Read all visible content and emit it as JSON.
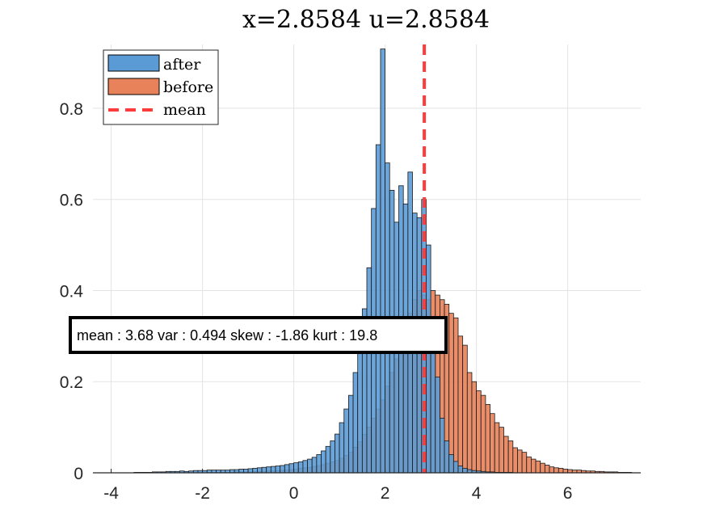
{
  "chart_data": {
    "type": "bar",
    "title": "x=2.8584 u=2.8584",
    "xlim": [
      -4.4,
      7.6
    ],
    "ylim": [
      0,
      0.94
    ],
    "xticks": [
      -4,
      -2,
      0,
      2,
      4,
      6
    ],
    "xtick_labels": [
      "-4",
      "-2",
      "0",
      "2",
      "4",
      "6"
    ],
    "yticks": [
      0,
      0.2,
      0.4,
      0.6,
      0.8
    ],
    "ytick_labels": [
      "0",
      "0.2",
      "0.4",
      "0.6",
      "0.8"
    ],
    "grid": true,
    "legend_position": "top-left",
    "bin_width": 0.1,
    "series": [
      {
        "name": "after",
        "color": "#5b9bd5",
        "bin_centers": [
          -3.45,
          -3.35,
          -3.25,
          -3.15,
          -3.05,
          -2.95,
          -2.85,
          -2.75,
          -2.65,
          -2.55,
          -2.45,
          -2.35,
          -2.25,
          -2.15,
          -2.05,
          -1.95,
          -1.85,
          -1.75,
          -1.65,
          -1.55,
          -1.45,
          -1.35,
          -1.25,
          -1.15,
          -1.05,
          -0.95,
          -0.85,
          -0.75,
          -0.65,
          -0.55,
          -0.45,
          -0.35,
          -0.25,
          -0.15,
          -0.05,
          0.05,
          0.15,
          0.25,
          0.35,
          0.45,
          0.55,
          0.65,
          0.75,
          0.85,
          0.95,
          1.05,
          1.15,
          1.25,
          1.35,
          1.45,
          1.55,
          1.65,
          1.75,
          1.85,
          1.95,
          2.05,
          2.15,
          2.25,
          2.35,
          2.45,
          2.55,
          2.65,
          2.75,
          2.85,
          2.95,
          3.05,
          3.15,
          3.25,
          3.35,
          3.45,
          3.55,
          3.65,
          3.75,
          3.85,
          3.95,
          4.05,
          4.15,
          4.25,
          4.35,
          4.45,
          4.55,
          4.65,
          4.75,
          4.85,
          4.95
        ],
        "values": [
          0.001,
          0.001,
          0.001,
          0.001,
          0.002,
          0.002,
          0.002,
          0.003,
          0.003,
          0.003,
          0.004,
          0.003,
          0.004,
          0.005,
          0.005,
          0.005,
          0.006,
          0.006,
          0.006,
          0.006,
          0.006,
          0.007,
          0.007,
          0.008,
          0.008,
          0.009,
          0.01,
          0.011,
          0.012,
          0.013,
          0.014,
          0.015,
          0.016,
          0.018,
          0.02,
          0.022,
          0.024,
          0.027,
          0.03,
          0.034,
          0.04,
          0.048,
          0.058,
          0.07,
          0.085,
          0.11,
          0.14,
          0.17,
          0.22,
          0.28,
          0.36,
          0.45,
          0.58,
          0.72,
          0.93,
          0.68,
          0.62,
          0.55,
          0.63,
          0.59,
          0.66,
          0.57,
          0.56,
          0.6,
          0.5,
          0.32,
          0.21,
          0.12,
          0.07,
          0.04,
          0.025,
          0.015,
          0.01,
          0.007,
          0.005,
          0.004,
          0.003,
          0.002,
          0.002,
          0.001,
          0.001,
          0.001,
          0.001,
          0.0,
          0.0
        ]
      },
      {
        "name": "before",
        "color": "#e8825a",
        "bin_centers": [
          -2.05,
          -1.95,
          -1.85,
          -1.75,
          -1.65,
          -1.55,
          -1.45,
          -1.35,
          -1.25,
          -1.15,
          -1.05,
          -0.95,
          -0.85,
          -0.75,
          -0.65,
          -0.55,
          -0.45,
          -0.35,
          -0.25,
          -0.15,
          -0.05,
          0.05,
          0.15,
          0.25,
          0.35,
          0.45,
          0.55,
          0.65,
          0.75,
          0.85,
          0.95,
          1.05,
          1.15,
          1.25,
          1.35,
          1.45,
          1.55,
          1.65,
          1.75,
          1.85,
          1.95,
          2.05,
          2.15,
          2.25,
          2.35,
          2.45,
          2.55,
          2.65,
          2.75,
          2.85,
          2.95,
          3.05,
          3.15,
          3.25,
          3.35,
          3.45,
          3.55,
          3.65,
          3.75,
          3.85,
          3.95,
          4.05,
          4.15,
          4.25,
          4.35,
          4.45,
          4.55,
          4.65,
          4.75,
          4.85,
          4.95,
          5.05,
          5.15,
          5.25,
          5.35,
          5.45,
          5.55,
          5.65,
          5.75,
          5.85,
          5.95,
          6.05,
          6.15,
          6.25,
          6.35,
          6.45,
          6.55,
          6.65,
          6.75,
          6.85,
          6.95,
          7.05,
          7.15,
          7.25,
          7.35
        ],
        "values": [
          0.0,
          0.0,
          0.001,
          0.001,
          0.001,
          0.001,
          0.001,
          0.001,
          0.002,
          0.002,
          0.002,
          0.002,
          0.003,
          0.003,
          0.003,
          0.004,
          0.004,
          0.005,
          0.005,
          0.006,
          0.007,
          0.008,
          0.01,
          0.011,
          0.012,
          0.014,
          0.016,
          0.018,
          0.021,
          0.024,
          0.027,
          0.032,
          0.038,
          0.045,
          0.056,
          0.068,
          0.084,
          0.1,
          0.12,
          0.14,
          0.16,
          0.19,
          0.22,
          0.25,
          0.28,
          0.31,
          0.35,
          0.38,
          0.4,
          0.39,
          0.38,
          0.4,
          0.39,
          0.38,
          0.37,
          0.35,
          0.34,
          0.3,
          0.28,
          0.22,
          0.2,
          0.18,
          0.17,
          0.15,
          0.13,
          0.11,
          0.1,
          0.08,
          0.07,
          0.055,
          0.05,
          0.045,
          0.035,
          0.03,
          0.026,
          0.021,
          0.017,
          0.013,
          0.011,
          0.01,
          0.008,
          0.007,
          0.006,
          0.006,
          0.005,
          0.004,
          0.004,
          0.003,
          0.003,
          0.002,
          0.002,
          0.002,
          0.001,
          0.001,
          0.001,
          0.001
        ]
      }
    ],
    "vline": {
      "name": "mean",
      "x": 2.8584,
      "color": "#ff3b3b",
      "style": "dashed"
    },
    "annotation": "mean : 3.68 var : 0.494 skew : -1.86 kurt : 19.8"
  }
}
